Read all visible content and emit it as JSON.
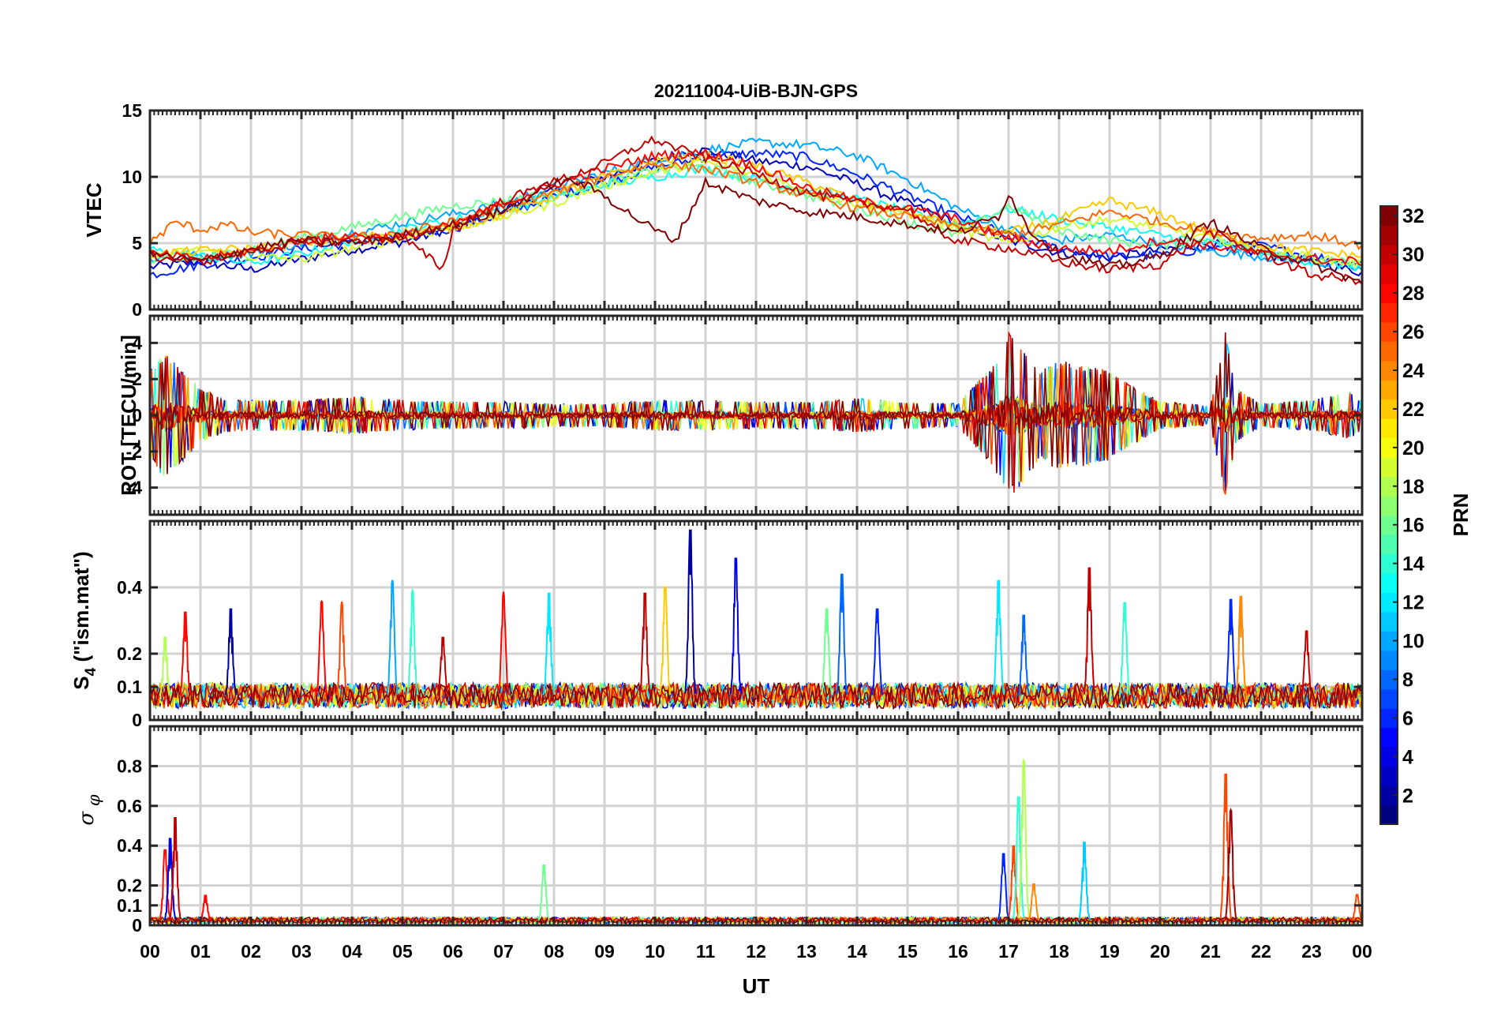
{
  "chart_data": {
    "type": "line",
    "title": "20211004-UiB-BJN-GPS",
    "xlabel": "UT",
    "x_tick_labels": [
      "00",
      "01",
      "02",
      "03",
      "04",
      "05",
      "06",
      "07",
      "08",
      "09",
      "10",
      "11",
      "12",
      "13",
      "14",
      "15",
      "16",
      "17",
      "18",
      "19",
      "20",
      "21",
      "22",
      "23",
      "00"
    ],
    "xlim_hours": [
      0,
      24
    ],
    "grid": true,
    "colorbar": {
      "label": "PRN",
      "range": [
        1,
        32
      ],
      "tick_labels": [
        "2",
        "4",
        "6",
        "8",
        "10",
        "12",
        "14",
        "16",
        "18",
        "20",
        "22",
        "24",
        "26",
        "28",
        "30",
        "32"
      ],
      "colormap": "jet",
      "placement": "right"
    },
    "panels": [
      {
        "id": "vtec",
        "ylabel": "VTEC",
        "ylim": [
          0,
          15
        ],
        "y_ticks": [
          0,
          5,
          10,
          15
        ],
        "y_tick_labels": [
          "0",
          "5",
          "10",
          "15"
        ],
        "series": [
          {
            "prn": 3,
            "x": [
              0,
              1,
              2,
              3,
              4,
              5,
              5.5,
              6,
              7,
              8,
              9,
              10,
              10.5,
              11,
              11.5,
              12,
              13,
              14,
              15,
              16,
              17,
              18,
              19,
              20,
              21,
              22,
              23,
              24
            ],
            "y": [
              3.2,
              3.6,
              3.0,
              3.8,
              4.5,
              5.1,
              5.6,
              6.2,
              7.6,
              8.9,
              10.0,
              11.2,
              11.8,
              12.0,
              11.6,
              11.2,
              10.8,
              9.5,
              8.0,
              6.5,
              5.2,
              4.3,
              3.9,
              4.5,
              5.0,
              4.2,
              3.6,
              2.8
            ]
          },
          {
            "prn": 6,
            "x": [
              0,
              1,
              2,
              3,
              4,
              5,
              6,
              7,
              8,
              9,
              10,
              11,
              12,
              13,
              14,
              15,
              16,
              17,
              18,
              19,
              20,
              21,
              22,
              23,
              24
            ],
            "y": [
              2.6,
              3.4,
              3.9,
              4.6,
              5.0,
              5.5,
              6.1,
              7.2,
              8.5,
              9.6,
              10.7,
              11.5,
              11.8,
              11.5,
              10.2,
              8.6,
              7.0,
              5.6,
              4.6,
              4.0,
              4.1,
              4.6,
              4.8,
              4.0,
              3.5
            ]
          },
          {
            "prn": 10,
            "x": [
              0,
              1,
              2,
              3,
              4,
              5,
              6,
              7,
              8,
              9,
              10,
              11,
              12,
              13,
              14,
              15,
              16,
              17,
              18,
              19,
              20,
              21,
              22,
              23,
              24
            ],
            "y": [
              3.8,
              4.1,
              4.2,
              5.0,
              5.8,
              6.5,
              7.2,
              8.0,
              9.2,
              10.3,
              11.3,
              12.0,
              12.6,
              12.4,
              11.6,
              9.8,
              7.6,
              6.0,
              5.2,
              5.6,
              5.0,
              4.4,
              4.0,
              3.6,
              3.0
            ]
          },
          {
            "prn": 13,
            "x": [
              0,
              1,
              2,
              3,
              4,
              5,
              6,
              7,
              8,
              9,
              10,
              11,
              12,
              13,
              14,
              15,
              16,
              17,
              18,
              19,
              20,
              21,
              22,
              23,
              24
            ],
            "y": [
              4.5,
              4.0,
              3.5,
              4.2,
              5.2,
              6.0,
              6.8,
              7.6,
              8.4,
              9.4,
              10.0,
              10.6,
              9.8,
              9.0,
              8.3,
              7.4,
              6.4,
              7.6,
              6.8,
              6.2,
              5.6,
              5.0,
              4.3,
              3.6,
              3.2
            ]
          },
          {
            "prn": 16,
            "x": [
              0,
              1,
              2,
              3,
              4,
              5,
              6,
              7,
              8,
              9,
              10,
              11,
              12,
              13,
              14,
              15,
              16,
              17,
              18,
              19,
              20,
              21,
              22,
              23,
              24
            ],
            "y": [
              3.6,
              3.8,
              4.6,
              5.4,
              6.2,
              7.0,
              7.8,
              8.2,
              8.8,
              9.6,
              10.5,
              10.8,
              9.6,
              8.6,
              7.6,
              6.6,
              5.6,
              7.8,
              6.0,
              5.2,
              4.8,
              5.4,
              4.5,
              3.8,
              3.4
            ]
          },
          {
            "prn": 19,
            "x": [
              0,
              1,
              2,
              3,
              4,
              5,
              6,
              7,
              8,
              9,
              10,
              11,
              12,
              13,
              14,
              15,
              16,
              17,
              18,
              19,
              20,
              21,
              22,
              23,
              24
            ],
            "y": [
              4.0,
              4.5,
              4.0,
              3.8,
              4.6,
              5.4,
              6.2,
              7.0,
              8.0,
              9.3,
              10.4,
              11.1,
              10.2,
              9.0,
              8.0,
              7.4,
              6.0,
              5.0,
              6.2,
              6.8,
              6.2,
              5.4,
              4.6,
              3.9,
              3.4
            ]
          },
          {
            "prn": 22,
            "x": [
              0,
              1,
              2,
              3,
              4,
              5,
              6,
              7,
              8,
              9,
              10,
              11,
              12,
              13,
              14,
              15,
              16,
              17,
              18,
              19,
              20,
              21,
              22,
              23,
              24
            ],
            "y": [
              4.2,
              4.4,
              4.6,
              5.0,
              5.4,
              5.8,
              6.2,
              7.2,
              8.6,
              10.0,
              11.2,
              11.6,
              10.8,
              9.6,
              8.2,
              7.2,
              6.4,
              5.8,
              6.8,
              8.2,
              7.2,
              5.8,
              4.8,
              4.4,
              4.0
            ]
          },
          {
            "prn": 25,
            "x": [
              0,
              0.5,
              1,
              1.5,
              2,
              3,
              4,
              5,
              6,
              7,
              8,
              9,
              10,
              11,
              12,
              13,
              14,
              15,
              16,
              17,
              18,
              19,
              20,
              21,
              22,
              23,
              24
            ],
            "y": [
              5.0,
              6.6,
              6.0,
              6.4,
              5.8,
              5.6,
              5.4,
              5.8,
              6.6,
              7.8,
              8.8,
              10.0,
              11.0,
              10.6,
              9.6,
              8.6,
              7.6,
              7.0,
              6.2,
              5.6,
              6.4,
              7.4,
              6.6,
              5.8,
              5.4,
              5.6,
              4.8
            ]
          },
          {
            "prn": 28,
            "x": [
              0,
              1,
              2,
              3,
              4,
              5,
              6,
              7,
              8,
              9,
              10,
              11,
              12,
              13,
              14,
              15,
              16,
              17,
              18,
              19,
              20,
              21,
              22,
              23,
              24
            ],
            "y": [
              4.2,
              3.8,
              4.4,
              5.2,
              5.6,
              5.4,
              6.4,
              8.0,
              9.4,
              10.6,
              11.6,
              11.8,
              10.8,
              9.2,
              8.2,
              7.6,
              6.8,
              5.4,
              4.6,
              4.4,
              5.2,
              4.8,
              4.2,
              3.8,
              3.6
            ]
          },
          {
            "prn": 30,
            "x": [
              0,
              1,
              2,
              3,
              4,
              5,
              5.8,
              6,
              7,
              8,
              9,
              9.5,
              10,
              10.4,
              11,
              12,
              13,
              14,
              15,
              15.5,
              16,
              17,
              18,
              19,
              20,
              21,
              22,
              23,
              24
            ],
            "y": [
              4.0,
              3.6,
              4.4,
              5.0,
              5.2,
              5.4,
              3.1,
              6.0,
              8.2,
              9.6,
              11.0,
              12.0,
              12.8,
              12.2,
              11.4,
              10.2,
              8.8,
              8.0,
              7.6,
              6.0,
              5.2,
              4.6,
              3.6,
              3.0,
              3.4,
              5.8,
              4.2,
              2.6,
              2.2
            ]
          },
          {
            "prn": 32,
            "x": [
              0,
              1,
              2,
              3,
              4,
              5,
              6,
              7,
              8,
              8.5,
              9,
              9.5,
              10,
              10.4,
              11,
              12,
              13,
              14,
              15,
              16,
              16.8,
              17,
              17.4,
              18,
              19,
              20,
              21,
              22,
              23,
              24
            ],
            "y": [
              4.2,
              3.6,
              4.6,
              5.2,
              5.0,
              5.6,
              6.4,
              7.4,
              9.6,
              9.6,
              8.6,
              7.2,
              6.0,
              5.2,
              9.6,
              8.2,
              7.4,
              7.0,
              6.4,
              5.8,
              7.0,
              8.8,
              6.0,
              4.2,
              3.2,
              4.0,
              6.6,
              4.6,
              3.4,
              2.0
            ]
          }
        ]
      },
      {
        "id": "rot",
        "ylabel": "ROT [TECU/min]",
        "ylim": [
          -5.5,
          5.5
        ],
        "y_ticks": [
          -4,
          -2,
          0,
          2,
          4
        ],
        "y_tick_labels": [
          "-4",
          "-2",
          "0",
          "2",
          "4"
        ],
        "envelope_note_hours": [
          0,
          24
        ],
        "envelope_x": [
          0,
          0.3,
          0.6,
          1,
          1.5,
          2,
          3,
          4,
          5,
          6,
          7,
          8,
          9,
          10,
          11,
          12,
          13,
          14,
          15,
          16,
          16.7,
          17,
          17.3,
          17.6,
          18,
          18.5,
          19,
          20,
          21,
          21.3,
          21.5,
          22,
          23,
          23.8,
          24
        ],
        "envelope_y": [
          2.6,
          3.8,
          2.8,
          1.6,
          1.0,
          0.9,
          0.9,
          1.1,
          0.9,
          0.8,
          0.8,
          0.7,
          0.7,
          0.9,
          0.9,
          0.8,
          0.8,
          1.0,
          0.8,
          0.7,
          3.0,
          4.8,
          4.0,
          2.6,
          3.2,
          3.0,
          2.6,
          0.8,
          0.6,
          5.0,
          1.6,
          0.7,
          0.9,
          1.4,
          0.8
        ]
      },
      {
        "id": "s4",
        "ylabel": "S4 (\"ism.mat\")",
        "ylabel_main": "S",
        "ylabel_sub": "4",
        "ylabel_rest": " (\"ism.mat\")",
        "ylim": [
          0,
          0.6
        ],
        "y_ticks": [
          0,
          0.1,
          0.2,
          0.4
        ],
        "y_tick_labels": [
          "0",
          "0.1",
          "0.2",
          "0.4"
        ],
        "peaks": [
          {
            "x": 0.3,
            "y": 0.26,
            "prn": 18
          },
          {
            "x": 0.7,
            "y": 0.34,
            "prn": 28
          },
          {
            "x": 1.6,
            "y": 0.35,
            "prn": 2
          },
          {
            "x": 3.4,
            "y": 0.37,
            "prn": 28
          },
          {
            "x": 3.8,
            "y": 0.36,
            "prn": 26
          },
          {
            "x": 4.8,
            "y": 0.43,
            "prn": 10
          },
          {
            "x": 5.2,
            "y": 0.4,
            "prn": 14
          },
          {
            "x": 5.8,
            "y": 0.26,
            "prn": 30
          },
          {
            "x": 7.0,
            "y": 0.39,
            "prn": 28
          },
          {
            "x": 7.9,
            "y": 0.4,
            "prn": 12
          },
          {
            "x": 9.8,
            "y": 0.4,
            "prn": 30
          },
          {
            "x": 10.2,
            "y": 0.42,
            "prn": 22
          },
          {
            "x": 10.7,
            "y": 0.6,
            "prn": 2
          },
          {
            "x": 11.6,
            "y": 0.51,
            "prn": 4
          },
          {
            "x": 13.4,
            "y": 0.35,
            "prn": 16
          },
          {
            "x": 13.7,
            "y": 0.46,
            "prn": 8
          },
          {
            "x": 14.4,
            "y": 0.35,
            "prn": 6
          },
          {
            "x": 16.8,
            "y": 0.44,
            "prn": 12
          },
          {
            "x": 17.3,
            "y": 0.33,
            "prn": 8
          },
          {
            "x": 18.6,
            "y": 0.48,
            "prn": 30
          },
          {
            "x": 19.3,
            "y": 0.37,
            "prn": 14
          },
          {
            "x": 21.4,
            "y": 0.38,
            "prn": 6
          },
          {
            "x": 21.6,
            "y": 0.39,
            "prn": 24
          },
          {
            "x": 22.9,
            "y": 0.28,
            "prn": 30
          }
        ],
        "baseline": 0.07
      },
      {
        "id": "sigma_phi",
        "ylabel": "σφ",
        "ylabel_main": "σ",
        "ylabel_sub": "φ",
        "ylim": [
          0,
          1.0
        ],
        "y_ticks": [
          0,
          0.1,
          0.2,
          0.4,
          0.6,
          0.8
        ],
        "y_tick_labels": [
          "0",
          "0.1",
          "0.2",
          "0.4",
          "0.6",
          "0.8"
        ],
        "peaks": [
          {
            "x": 0.3,
            "y": 0.4,
            "prn": 28
          },
          {
            "x": 0.4,
            "y": 0.46,
            "prn": 4
          },
          {
            "x": 0.5,
            "y": 0.57,
            "prn": 30
          },
          {
            "x": 1.1,
            "y": 0.16,
            "prn": 28
          },
          {
            "x": 7.8,
            "y": 0.32,
            "prn": 16
          },
          {
            "x": 16.9,
            "y": 0.38,
            "prn": 6
          },
          {
            "x": 17.1,
            "y": 0.42,
            "prn": 26
          },
          {
            "x": 17.2,
            "y": 0.68,
            "prn": 14
          },
          {
            "x": 17.3,
            "y": 0.86,
            "prn": 18
          },
          {
            "x": 17.5,
            "y": 0.22,
            "prn": 24
          },
          {
            "x": 18.5,
            "y": 0.44,
            "prn": 11
          },
          {
            "x": 21.3,
            "y": 0.8,
            "prn": 26
          },
          {
            "x": 21.4,
            "y": 0.6,
            "prn": 31
          },
          {
            "x": 23.9,
            "y": 0.16,
            "prn": 26
          }
        ],
        "baseline": 0.02
      }
    ]
  }
}
